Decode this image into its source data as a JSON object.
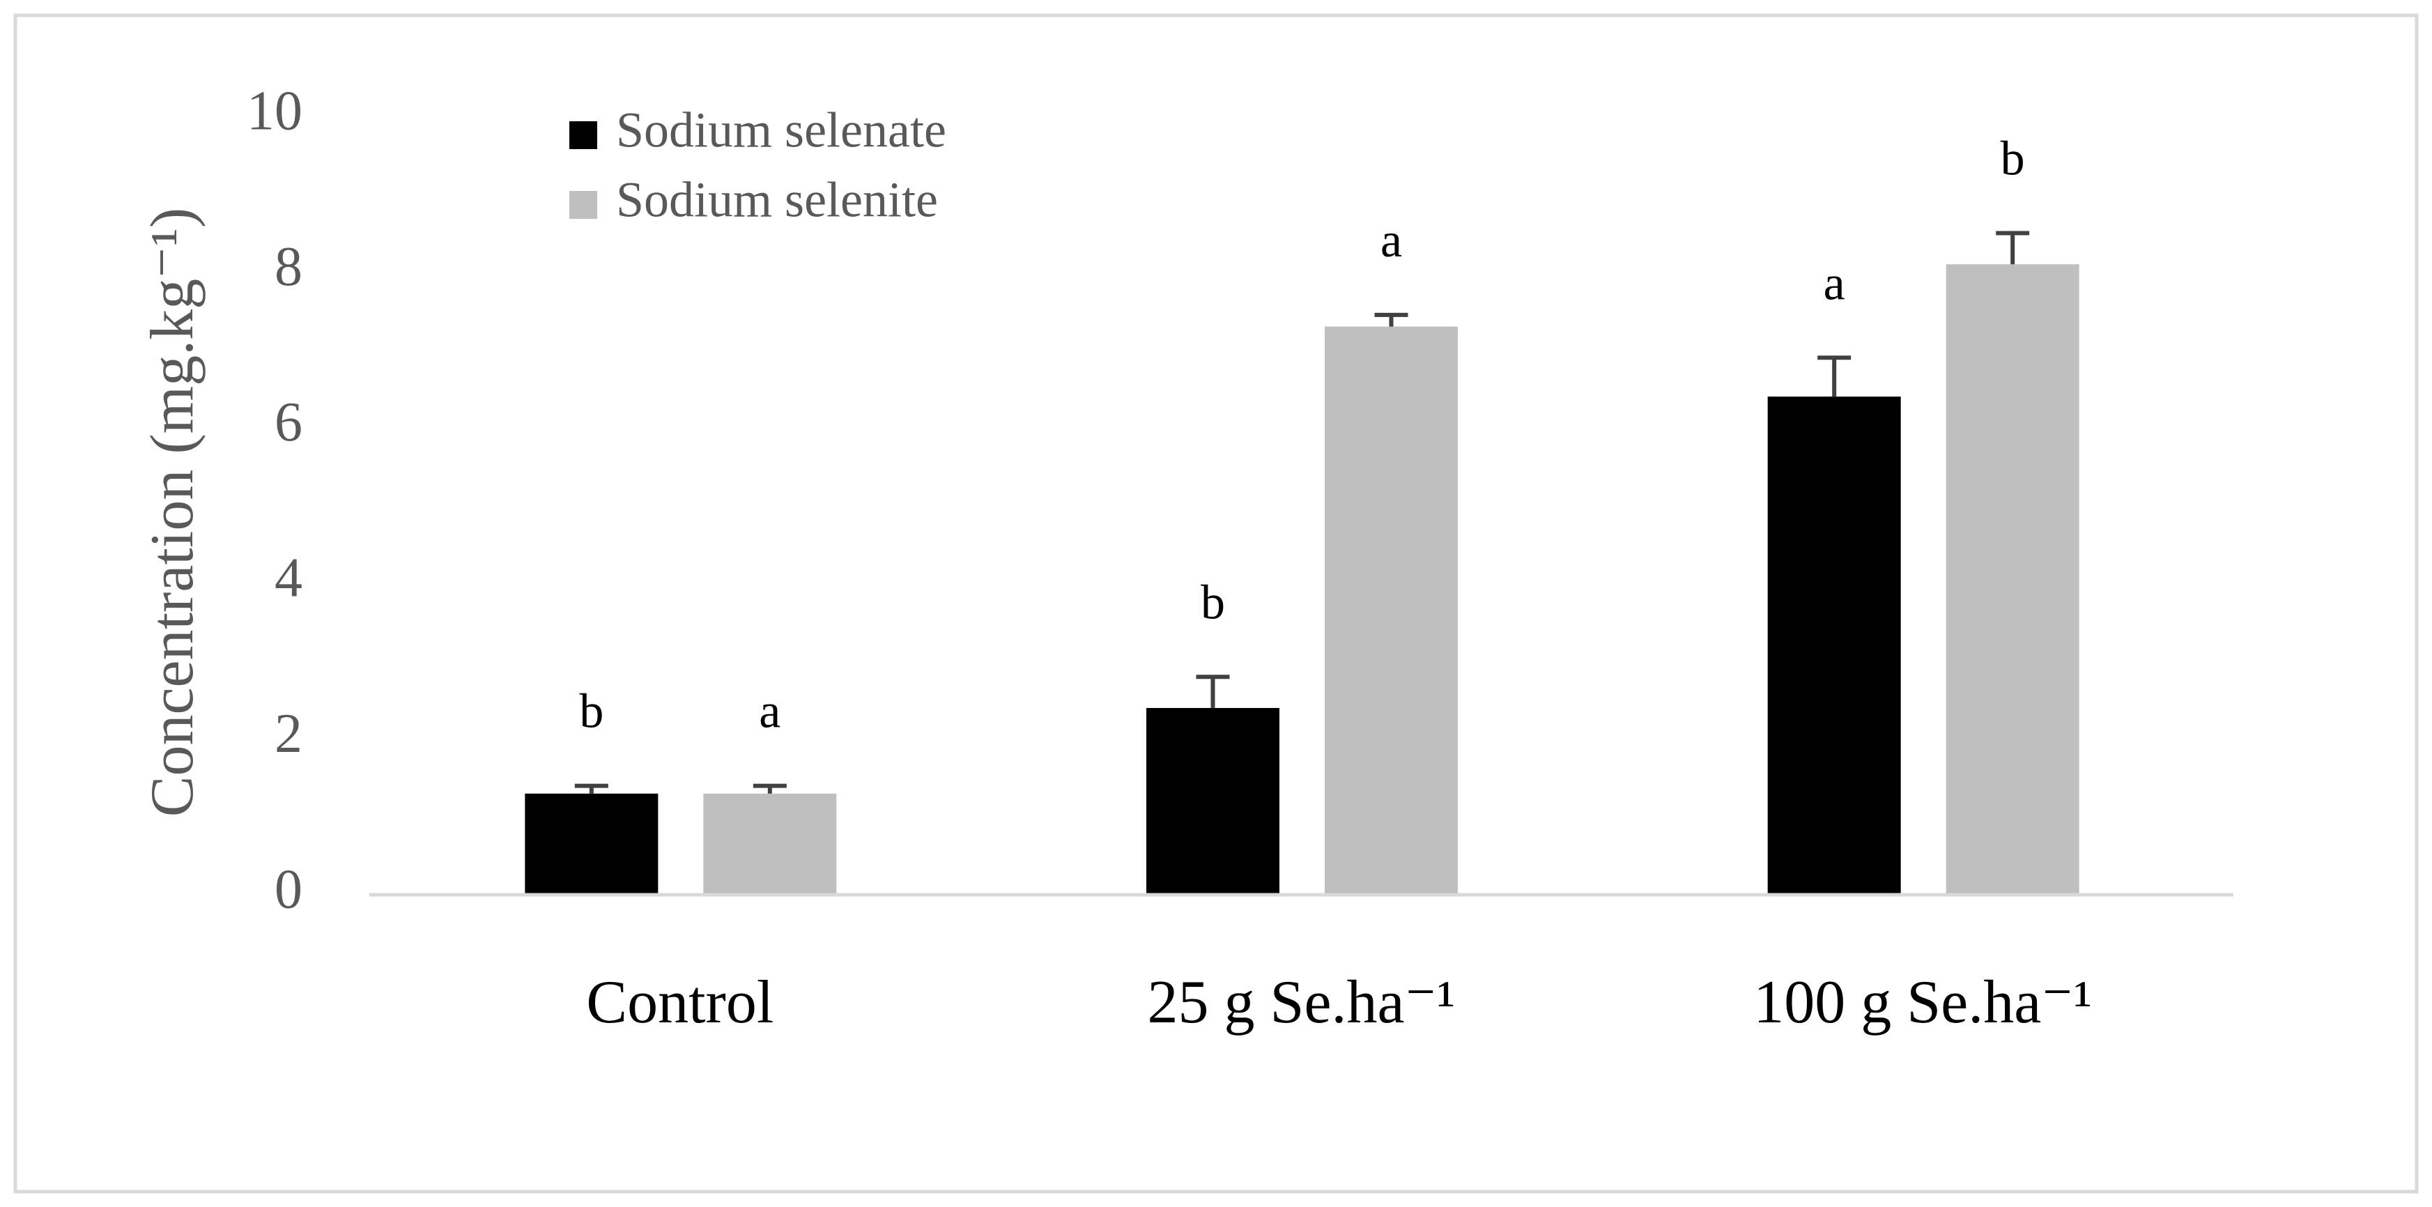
{
  "chart_data": {
    "type": "bar",
    "y_axis_label": "Concentration (mg.kg⁻¹)",
    "categories": [
      "Control",
      "25 g Se.ha⁻¹",
      "100 g Se.ha⁻¹"
    ],
    "series": [
      {
        "name": "Sodium selenate",
        "color": "#000000",
        "values": [
          1.3,
          2.4,
          6.4
        ],
        "errors": [
          0.1,
          0.4,
          0.5
        ],
        "letters": [
          "b",
          "b",
          "a"
        ]
      },
      {
        "name": "Sodium selenite",
        "color": "#bfbfbf",
        "values": [
          1.3,
          7.3,
          8.1
        ],
        "errors": [
          0.1,
          0.15,
          0.4
        ],
        "letters": [
          "a",
          "a",
          "b"
        ]
      }
    ],
    "ylim": [
      0,
      10
    ],
    "yticks": [
      0,
      2,
      4,
      6,
      8,
      10
    ],
    "grid": false,
    "legend": "top-left"
  }
}
